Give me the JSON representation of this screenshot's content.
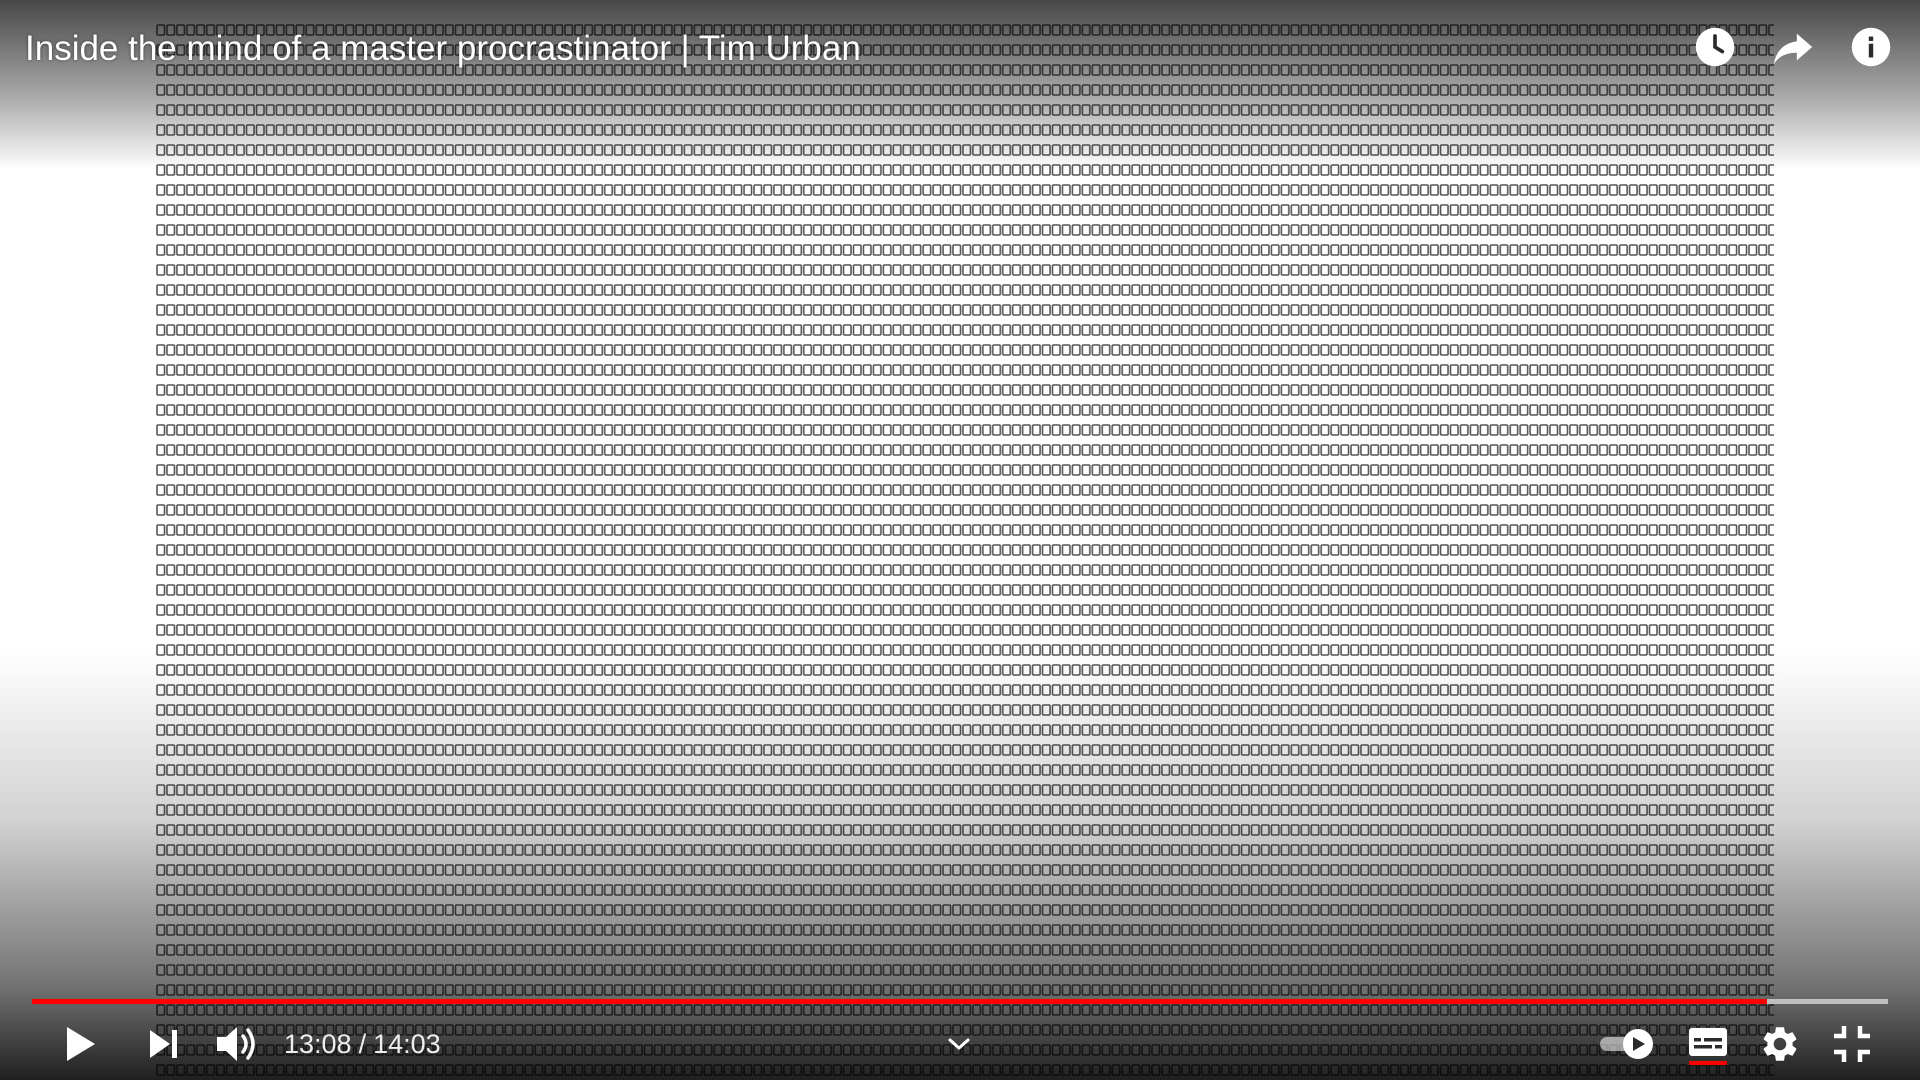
{
  "video": {
    "title": "Inside the mind of a master procrastinator | Tim Urban",
    "current_time": "13:08",
    "duration": "14:03",
    "time_separator": "/",
    "played_fraction": 0.935,
    "buffered_fraction": 1.0
  },
  "top_icons": [
    {
      "name": "watch-later-icon",
      "label": "Watch later"
    },
    {
      "name": "share-icon",
      "label": "Share"
    },
    {
      "name": "info-icon",
      "label": "Info"
    }
  ],
  "controls": {
    "play": "play-icon",
    "next": "next-icon",
    "volume": "volume-icon",
    "chapters": "chevron-down-icon",
    "autoplay": "autoplay-toggle-icon",
    "subtitles": "subtitles-icon",
    "settings": "gear-icon",
    "fullscreen": "exit-fullscreen-icon"
  },
  "colors": {
    "accent": "#ff0000",
    "icon": "#ffffff",
    "grid_cell": "#555555"
  }
}
